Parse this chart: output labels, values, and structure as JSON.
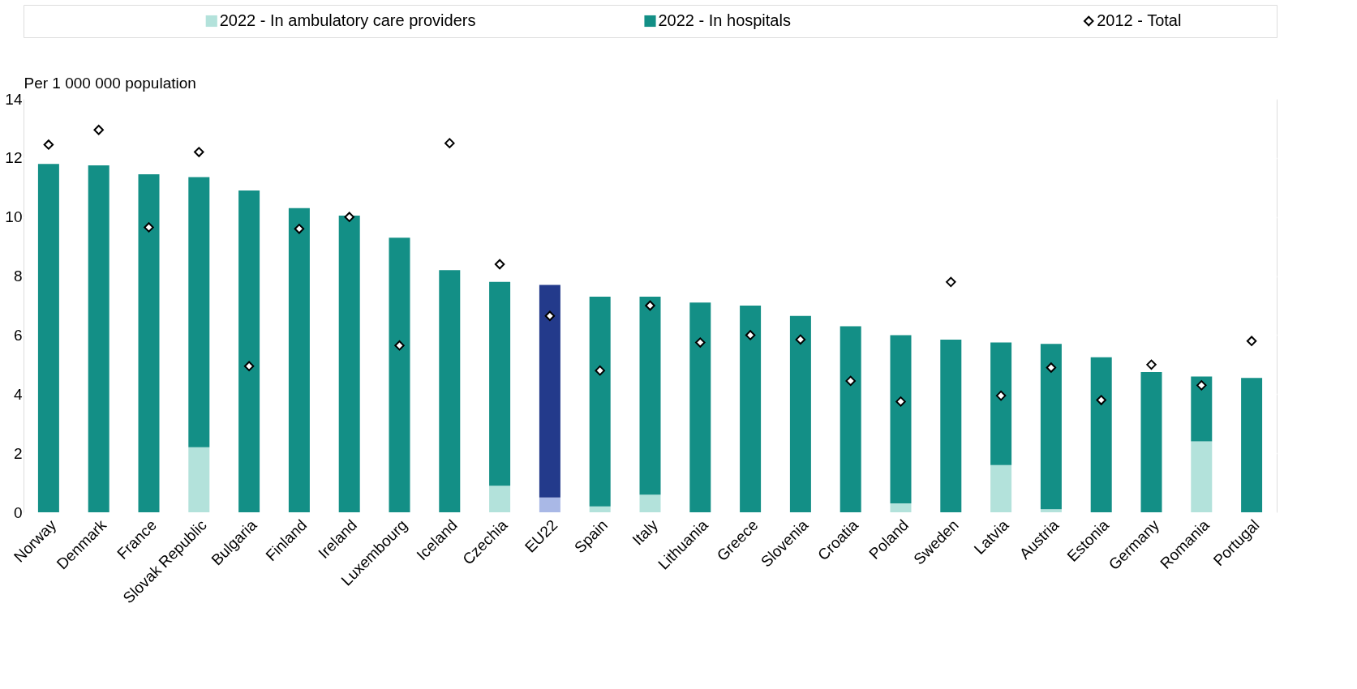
{
  "chart_data": {
    "type": "bar",
    "stacked": true,
    "ylabel": "Per 1 000 000 population",
    "categories": [
      "Norway",
      "Denmark",
      "France",
      "Slovak Republic",
      "Bulgaria",
      "Finland",
      "Ireland",
      "Luxembourg",
      "Iceland",
      "Czechia",
      "EU22",
      "Spain",
      "Italy",
      "Lithuania",
      "Greece",
      "Slovenia",
      "Croatia",
      "Poland",
      "Sweden",
      "Latvia",
      "Austria",
      "Estonia",
      "Germany",
      "Romania",
      "Portugal"
    ],
    "series": [
      {
        "name": "2022 - In ambulatory care providers",
        "color": "#b3e2db",
        "colors": [
          "#b3e2db",
          "#b3e2db",
          "#b3e2db",
          "#b3e2db",
          "#b3e2db",
          "#b3e2db",
          "#b3e2db",
          "#b3e2db",
          "#b3e2db",
          "#b3e2db",
          "#a9b8e6",
          "#b3e2db",
          "#b3e2db",
          "#b3e2db",
          "#b3e2db",
          "#b3e2db",
          "#b3e2db",
          "#b3e2db",
          "#b3e2db",
          "#b3e2db",
          "#b3e2db",
          "#b3e2db",
          "#b3e2db",
          "#b3e2db",
          "#b3e2db"
        ],
        "values": [
          0,
          0,
          0,
          2.2,
          0,
          0,
          0,
          0,
          0,
          0.9,
          0.5,
          0.2,
          0.6,
          0,
          0,
          0,
          0,
          0.3,
          0,
          1.6,
          0.1,
          0,
          0,
          2.4,
          0
        ]
      },
      {
        "name": "2022 - In hospitals",
        "color": "#138f86",
        "colors": [
          "#138f86",
          "#138f86",
          "#138f86",
          "#138f86",
          "#138f86",
          "#138f86",
          "#138f86",
          "#138f86",
          "#138f86",
          "#138f86",
          "#233a8b",
          "#138f86",
          "#138f86",
          "#138f86",
          "#138f86",
          "#138f86",
          "#138f86",
          "#138f86",
          "#138f86",
          "#138f86",
          "#138f86",
          "#138f86",
          "#138f86",
          "#138f86",
          "#138f86"
        ],
        "values": [
          11.8,
          11.75,
          11.45,
          9.15,
          10.9,
          10.3,
          10.05,
          9.3,
          8.2,
          6.9,
          7.2,
          7.1,
          6.7,
          7.1,
          7.0,
          6.65,
          6.3,
          5.7,
          5.85,
          4.15,
          5.6,
          5.25,
          4.75,
          2.2,
          4.55
        ]
      },
      {
        "name": "2012  - Total",
        "type": "scatter",
        "marker": "diamond",
        "color": "#000000",
        "values": [
          12.45,
          12.95,
          9.65,
          12.2,
          4.95,
          9.6,
          10.0,
          5.65,
          12.5,
          8.4,
          6.65,
          4.8,
          7.0,
          5.75,
          6.0,
          5.85,
          4.45,
          3.75,
          7.8,
          3.95,
          4.9,
          3.8,
          5.0,
          4.3,
          5.8
        ]
      }
    ],
    "ylim": [
      0,
      14
    ],
    "yticks": [
      0,
      2,
      4,
      6,
      8,
      10,
      12,
      14
    ],
    "grid": true,
    "legend": "top"
  }
}
